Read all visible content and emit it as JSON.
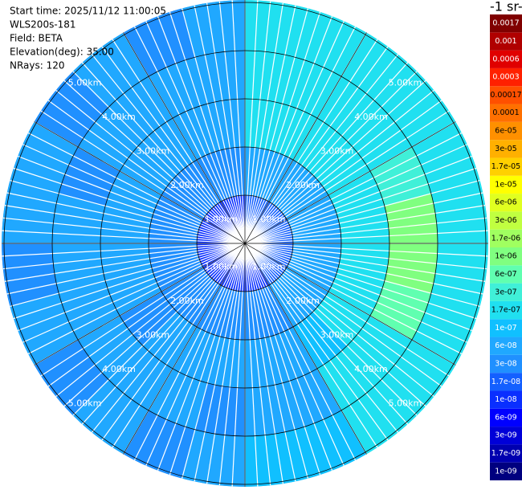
{
  "chart_data": {
    "type": "ppi",
    "header": [
      "Start time: 2025/11/12 11:00:05",
      "WLS200s-181",
      "Field: BETA",
      "Elevation(deg): 35.00",
      "NRays: 120"
    ],
    "nrays": 120,
    "colorbar_title": "-1 sr-",
    "rlim": [
      0,
      5.05
    ],
    "rings": [
      {
        "value": 1,
        "label": "1.00km"
      },
      {
        "value": 2,
        "label": "2.00km"
      },
      {
        "value": 3,
        "label": "3.00km"
      },
      {
        "value": 4,
        "label": "4.00km"
      },
      {
        "value": 5,
        "label": "5.00km"
      }
    ],
    "azimuth_bins": [
      0,
      15,
      30,
      45,
      60,
      75,
      90,
      105,
      120,
      135,
      150,
      165,
      180,
      195,
      210,
      225,
      240,
      255,
      270,
      285,
      300,
      315,
      330,
      345,
      360
    ],
    "range_bins": [
      0,
      1,
      2,
      3,
      4,
      5.05
    ],
    "values": [
      [
        1.7e-08,
        6e-08,
        1.7e-07,
        1.7e-07,
        1.7e-07
      ],
      [
        1.7e-08,
        6e-08,
        1.7e-07,
        1.7e-07,
        1.7e-07
      ],
      [
        1.7e-08,
        6e-08,
        1.7e-07,
        1.7e-07,
        1.7e-07
      ],
      [
        1.7e-08,
        6e-08,
        1.7e-07,
        1.7e-07,
        1.7e-07
      ],
      [
        1.7e-08,
        6e-08,
        1.7e-07,
        3e-07,
        1.7e-07
      ],
      [
        1.7e-08,
        6e-08,
        1.7e-07,
        1e-06,
        1.7e-07
      ],
      [
        1.7e-08,
        6e-08,
        1.7e-07,
        1e-06,
        1.7e-07
      ],
      [
        1.7e-08,
        6e-08,
        1.7e-07,
        6e-07,
        1.7e-07
      ],
      [
        1.7e-08,
        6e-08,
        1.7e-07,
        1.7e-07,
        1.7e-07
      ],
      [
        1.7e-08,
        6e-08,
        1e-07,
        1.7e-07,
        1.7e-07
      ],
      [
        1e-08,
        3e-08,
        6e-08,
        6e-08,
        1e-07
      ],
      [
        1e-08,
        3e-08,
        6e-08,
        6e-08,
        1e-07
      ],
      [
        1e-08,
        3e-08,
        6e-08,
        3e-08,
        6e-08
      ],
      [
        1e-08,
        3e-08,
        6e-08,
        6e-08,
        3e-08
      ],
      [
        1e-08,
        3e-08,
        6e-08,
        6e-08,
        6e-08
      ],
      [
        1e-08,
        3e-08,
        3e-08,
        6e-08,
        3e-08
      ],
      [
        1e-08,
        3e-08,
        6e-08,
        6e-08,
        6e-08
      ],
      [
        1e-08,
        3e-08,
        6e-08,
        6e-08,
        3e-08
      ],
      [
        1e-08,
        3e-08,
        6e-08,
        6e-08,
        6e-08
      ],
      [
        1e-08,
        3e-08,
        6e-08,
        3e-08,
        6e-08
      ],
      [
        1e-08,
        3e-08,
        6e-08,
        6e-08,
        3e-08
      ],
      [
        1e-08,
        3e-08,
        6e-08,
        6e-08,
        6e-08
      ],
      [
        1e-08,
        3e-08,
        6e-08,
        6e-08,
        3e-08
      ],
      [
        1e-08,
        3e-08,
        6e-08,
        6e-08,
        6e-08
      ]
    ],
    "levels": [
      {
        "value": 1e-09,
        "label": "1e-09"
      },
      {
        "value": 1.7e-09,
        "label": "1.7e-09"
      },
      {
        "value": 3e-09,
        "label": "3e-09"
      },
      {
        "value": 6e-09,
        "label": "6e-09"
      },
      {
        "value": 1e-08,
        "label": "1e-08"
      },
      {
        "value": 1.7e-08,
        "label": "1.7e-08"
      },
      {
        "value": 3e-08,
        "label": "3e-08"
      },
      {
        "value": 6e-08,
        "label": "6e-08"
      },
      {
        "value": 1e-07,
        "label": "1e-07"
      },
      {
        "value": 1.7e-07,
        "label": "1.7e-07"
      },
      {
        "value": 3e-07,
        "label": "3e-07"
      },
      {
        "value": 6e-07,
        "label": "6e-07"
      },
      {
        "value": 1e-06,
        "label": "1e-06"
      },
      {
        "value": 1.7e-06,
        "label": "1.7e-06"
      },
      {
        "value": 3e-06,
        "label": "3e-06"
      },
      {
        "value": 6e-06,
        "label": "6e-06"
      },
      {
        "value": 1e-05,
        "label": "1e-05"
      },
      {
        "value": 1.7e-05,
        "label": "1.7e-05"
      },
      {
        "value": 3e-05,
        "label": "3e-05"
      },
      {
        "value": 6e-05,
        "label": "6e-05"
      },
      0.0001,
      0.00017,
      0.0003,
      0.0006,
      0.001,
      0.0017
    ],
    "colors": [
      "#00007f",
      "#0000b0",
      "#0000d8",
      "#0000ff",
      "#0a2fff",
      "#1460ff",
      "#2090ff",
      "#20a8ff",
      "#10c0ff",
      "#20e0f0",
      "#40f0d8",
      "#60ffb0",
      "#80ff80",
      "#a0ff60",
      "#c0ff40",
      "#e0ff20",
      "#ffff00",
      "#ffd000",
      "#ffb000",
      "#ff9000",
      "#ff7000",
      "#ff5000",
      "#ff2000",
      "#e00000",
      "#b00000",
      "#800000"
    ]
  }
}
